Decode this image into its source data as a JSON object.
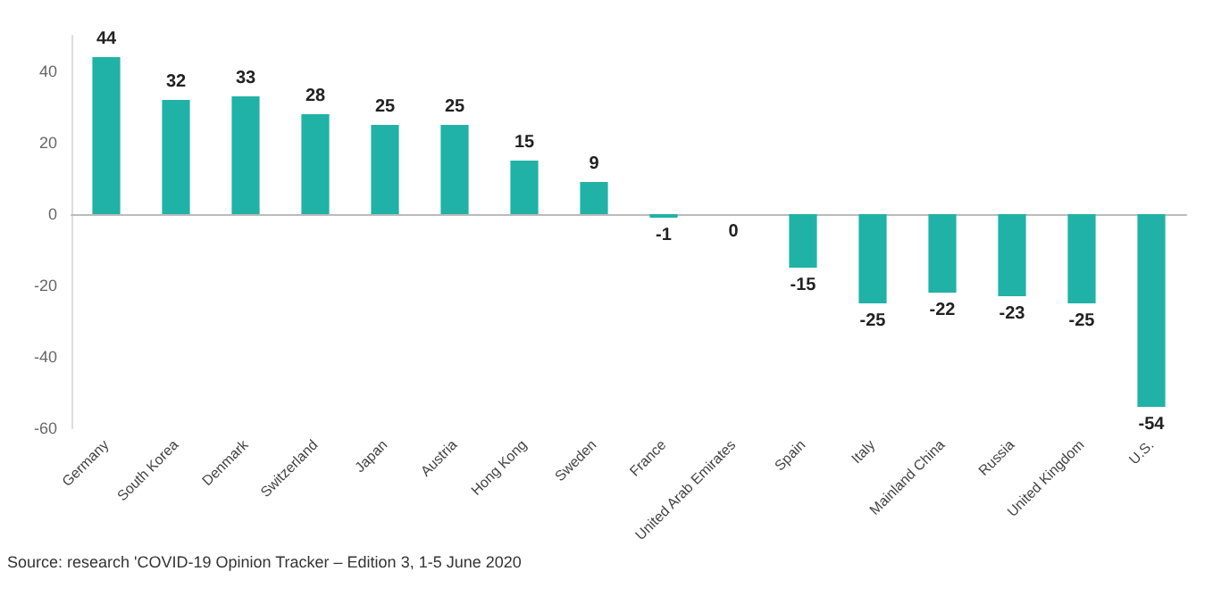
{
  "chart_data": {
    "type": "bar",
    "categories": [
      "Germany",
      "South Korea",
      "Denmark",
      "Switzerland",
      "Japan",
      "Austria",
      "Hong Kong",
      "Sweden",
      "France",
      "United Arab Emirates",
      "Spain",
      "Italy",
      "Mainland China",
      "Russia",
      "United Kingdom",
      "U.S."
    ],
    "values": [
      44,
      32,
      33,
      28,
      25,
      25,
      15,
      9,
      -1,
      0,
      -15,
      -25,
      -22,
      -23,
      -25,
      -54
    ],
    "color": "#20b2a6",
    "ylim": [
      -60,
      50
    ],
    "yticks": [
      -60,
      -40,
      -20,
      0,
      20,
      40
    ],
    "data_labels": true,
    "annotations": [
      "Source: research 'COVID-19 Opinion Tracker – Edition 3, 1-5 June 2020"
    ]
  }
}
